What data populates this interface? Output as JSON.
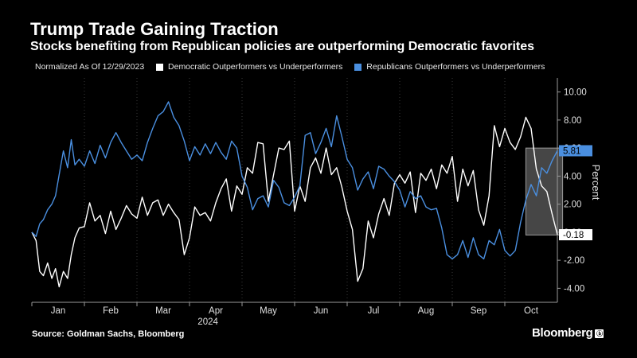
{
  "header": {
    "title": "Trump Trade Gaining Traction",
    "subtitle": "Stocks benefiting from Republican policies are outperforming Democratic favorites"
  },
  "legend": {
    "note": "Normalized As Of 12/29/2023",
    "items": [
      {
        "label": "Democratic Outperformers vs Underperformers",
        "color": "#ffffff"
      },
      {
        "label": "Republicans Outperformers vs Underperformers",
        "color": "#4a8fe0"
      }
    ]
  },
  "footer": {
    "source": "Source: Goldman Sachs, Bloomberg",
    "brand": "Bloomberg",
    "brand_mark": "ⓑ"
  },
  "chart_data": {
    "type": "line",
    "ylabel": "Percent",
    "xlabel": "2024",
    "ylim": [
      -5,
      11
    ],
    "yticks": [
      10,
      8,
      6,
      4,
      2,
      0,
      -2,
      -4
    ],
    "ytick_labels": [
      "10.00",
      "8.00",
      "6.00",
      "4.00",
      "2.00",
      "0.00",
      "-2.00",
      "-4.00"
    ],
    "x_months": [
      "Jan",
      "Feb",
      "Mar",
      "Apr",
      "May",
      "Jun",
      "Jul",
      "Aug",
      "Sep",
      "Oct"
    ],
    "highlight_window": [
      9.4,
      10.1
    ],
    "series": [
      {
        "name": "Democratic Outperformers vs Underperformers",
        "color": "#ffffff",
        "last_label": "-0.18",
        "x": [
          0,
          0.08,
          0.15,
          0.22,
          0.3,
          0.38,
          0.45,
          0.52,
          0.6,
          0.68,
          0.75,
          0.82,
          0.9,
          1,
          1.1,
          1.2,
          1.3,
          1.4,
          1.5,
          1.6,
          1.7,
          1.8,
          1.9,
          2,
          2.1,
          2.2,
          2.3,
          2.4,
          2.5,
          2.6,
          2.7,
          2.8,
          2.9,
          3,
          3.1,
          3.2,
          3.3,
          3.4,
          3.5,
          3.6,
          3.7,
          3.8,
          3.9,
          4,
          4.1,
          4.2,
          4.3,
          4.4,
          4.5,
          4.6,
          4.7,
          4.8,
          4.9,
          5,
          5.1,
          5.2,
          5.3,
          5.4,
          5.5,
          5.6,
          5.7,
          5.8,
          5.9,
          6,
          6.1,
          6.2,
          6.3,
          6.4,
          6.5,
          6.6,
          6.7,
          6.8,
          6.9,
          7,
          7.1,
          7.2,
          7.3,
          7.4,
          7.5,
          7.6,
          7.7,
          7.8,
          7.9,
          8,
          8.1,
          8.2,
          8.3,
          8.4,
          8.5,
          8.6,
          8.7,
          8.8,
          8.9,
          9,
          9.1,
          9.2,
          9.3,
          9.4,
          9.5,
          9.6,
          9.7,
          9.8,
          9.9,
          10
        ],
        "values": [
          0,
          -0.6,
          -2.8,
          -3.1,
          -2.2,
          -3.3,
          -2.6,
          -3.9,
          -2.8,
          -3.3,
          -1.6,
          -0.4,
          0.3,
          0.4,
          2.1,
          0.8,
          1.2,
          -0.1,
          1.5,
          0.2,
          1.0,
          1.9,
          1.3,
          1.0,
          2.5,
          1.2,
          2.1,
          2.3,
          1.2,
          2.0,
          1.4,
          0.9,
          -1.6,
          -0.4,
          1.8,
          1.2,
          1.4,
          0.8,
          2.1,
          3.1,
          3.8,
          1.5,
          3.3,
          2.7,
          4.6,
          4.2,
          6.4,
          6.3,
          2.2,
          4.1,
          6.0,
          5.9,
          6.5,
          1.5,
          3.3,
          2.2,
          4.6,
          5.3,
          4.2,
          6.0,
          4.1,
          4.6,
          3.2,
          1.5,
          0.2,
          -3.5,
          -2.6,
          0.8,
          -0.4,
          1.3,
          2.4,
          1.2,
          3.5,
          4.1,
          3.5,
          4.3,
          1.4,
          4.2,
          3.7,
          4.5,
          3.1,
          4.8,
          4.2,
          5.4,
          2.2,
          4.5,
          3.3,
          4.4,
          1.6,
          0.5,
          2.6,
          7.6,
          6.1,
          7.4,
          6.4,
          5.9,
          6.8,
          8.2,
          7.4,
          4.5,
          3.3,
          2.9,
          1.3,
          -0.18
        ]
      },
      {
        "name": "Republicans Outperformers vs Underperformers",
        "color": "#4a8fe0",
        "last_label": "5.81",
        "x": [
          0,
          0.08,
          0.15,
          0.22,
          0.3,
          0.38,
          0.45,
          0.52,
          0.6,
          0.68,
          0.75,
          0.82,
          0.9,
          1,
          1.1,
          1.2,
          1.3,
          1.4,
          1.5,
          1.6,
          1.7,
          1.8,
          1.9,
          2,
          2.1,
          2.2,
          2.3,
          2.4,
          2.5,
          2.6,
          2.7,
          2.8,
          2.9,
          3,
          3.1,
          3.2,
          3.3,
          3.4,
          3.5,
          3.6,
          3.7,
          3.8,
          3.9,
          4,
          4.1,
          4.2,
          4.3,
          4.4,
          4.5,
          4.6,
          4.7,
          4.8,
          4.9,
          5,
          5.1,
          5.2,
          5.3,
          5.4,
          5.5,
          5.6,
          5.7,
          5.8,
          5.9,
          6,
          6.1,
          6.2,
          6.3,
          6.4,
          6.5,
          6.6,
          6.7,
          6.8,
          6.9,
          7,
          7.1,
          7.2,
          7.3,
          7.4,
          7.5,
          7.6,
          7.7,
          7.8,
          7.9,
          8,
          8.1,
          8.2,
          8.3,
          8.4,
          8.5,
          8.6,
          8.7,
          8.8,
          8.9,
          9,
          9.1,
          9.2,
          9.3,
          9.4,
          9.5,
          9.6,
          9.7,
          9.8,
          9.9,
          10
        ],
        "values": [
          0,
          -0.3,
          0.6,
          0.9,
          1.6,
          2.0,
          2.6,
          4.1,
          5.8,
          4.6,
          6.6,
          4.8,
          5.2,
          4.7,
          5.8,
          4.9,
          6.2,
          5.3,
          6.4,
          7.1,
          6.4,
          5.8,
          5.2,
          5.5,
          5.1,
          6.4,
          7.4,
          8.3,
          8.6,
          9.3,
          8.2,
          7.6,
          6.5,
          5.1,
          6.1,
          5.5,
          6.3,
          5.6,
          6.4,
          5.7,
          5.2,
          6.5,
          6.0,
          4.0,
          3.2,
          1.6,
          2.4,
          2.6,
          1.8,
          3.7,
          3.2,
          2.1,
          1.9,
          2.5,
          3.3,
          6.9,
          7.1,
          5.6,
          6.4,
          7.4,
          6.1,
          8.3,
          6.8,
          5.2,
          4.6,
          3.0,
          3.8,
          4.3,
          3.1,
          4.7,
          4.5,
          4.0,
          3.6,
          3.0,
          1.8,
          2.9,
          2.4,
          2.6,
          1.8,
          1.6,
          1.7,
          0.3,
          -1.6,
          -1.9,
          -1.6,
          -0.6,
          -1.8,
          -0.4,
          -1.6,
          -1.9,
          -0.6,
          -0.9,
          0.2,
          -1.3,
          -1.7,
          -1.3,
          0.7,
          2.3,
          3.4,
          2.6,
          4.6,
          4.2,
          5.1,
          5.81
        ]
      }
    ]
  }
}
